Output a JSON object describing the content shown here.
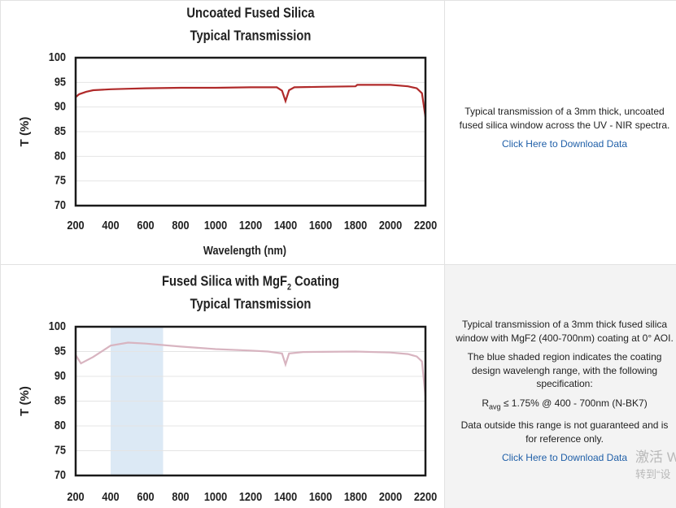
{
  "chart_data": [
    {
      "type": "line",
      "title": "Uncoated Fused Silica",
      "subtitle": "Typical Transmission",
      "y_label": "T (%)",
      "x_label": "Wavelength (nm)",
      "x": [
        200,
        220,
        260,
        300,
        400,
        500,
        600,
        800,
        1000,
        1200,
        1350,
        1380,
        1400,
        1420,
        1450,
        1600,
        1800,
        1810,
        2000,
        2100,
        2150,
        2180,
        2200
      ],
      "values": [
        92,
        92.6,
        93.1,
        93.4,
        93.6,
        93.7,
        93.8,
        93.9,
        93.9,
        94,
        94,
        93.3,
        91.2,
        93.4,
        94,
        94.1,
        94.2,
        94.5,
        94.5,
        94.2,
        93.8,
        92.8,
        88
      ],
      "color": "#b02a2a",
      "xlim": [
        200,
        2200
      ],
      "xticks": [
        200,
        400,
        600,
        800,
        1000,
        1200,
        1400,
        1600,
        1800,
        2000,
        2200
      ],
      "ylim": [
        70,
        100
      ],
      "yticks": [
        70,
        75,
        80,
        85,
        90,
        95,
        100
      ],
      "grid": true
    },
    {
      "type": "line",
      "title": "Fused Silica with MgF",
      "title_subscript": "2",
      "title_end": "Coating",
      "subtitle": "Typical Transmission",
      "y_label": "T (%)",
      "x": [
        200,
        230,
        300,
        400,
        500,
        600,
        800,
        1000,
        1200,
        1300,
        1380,
        1400,
        1420,
        1500,
        1800,
        2000,
        2100,
        2150,
        2180,
        2200
      ],
      "values": [
        94.3,
        92.6,
        93.9,
        96.2,
        96.8,
        96.6,
        96,
        95.5,
        95.2,
        95,
        94.6,
        92.4,
        94.6,
        94.9,
        95,
        94.8,
        94.5,
        94,
        93,
        86
      ],
      "color": "#d8b4c0",
      "shaded_region": [
        400,
        700
      ],
      "shade_color": "#dce9f5",
      "xlim": [
        200,
        2200
      ],
      "xticks": [
        200,
        400,
        600,
        800,
        1000,
        1200,
        1400,
        1600,
        1800,
        2000,
        2200
      ],
      "ylim": [
        70,
        100
      ],
      "yticks": [
        70,
        75,
        80,
        85,
        90,
        95,
        100
      ],
      "grid": true
    }
  ],
  "panels": [
    {
      "text": "Typical transmission of a 3mm thick, uncoated fused silica window across the UV - NIR spectra.",
      "link": "Click Here to Download Data"
    },
    {
      "text": "Typical transmission of a 3mm thick fused silica window with MgF2 (400-700nm) coating at 0° AOI.",
      "shade_note": "The blue shaded region indicates the coating design wavelengh range, with the following specification:",
      "spec_symbol": "R",
      "spec_subscript": "avg",
      "spec_text": "≤ 1.75% @ 400 - 700nm (N-BK7)",
      "note": "Data outside this range is not guaranteed and is for reference only.",
      "link": "Click Here to Download Data"
    }
  ],
  "watermark": [
    "激活 W",
    "转到“设"
  ]
}
